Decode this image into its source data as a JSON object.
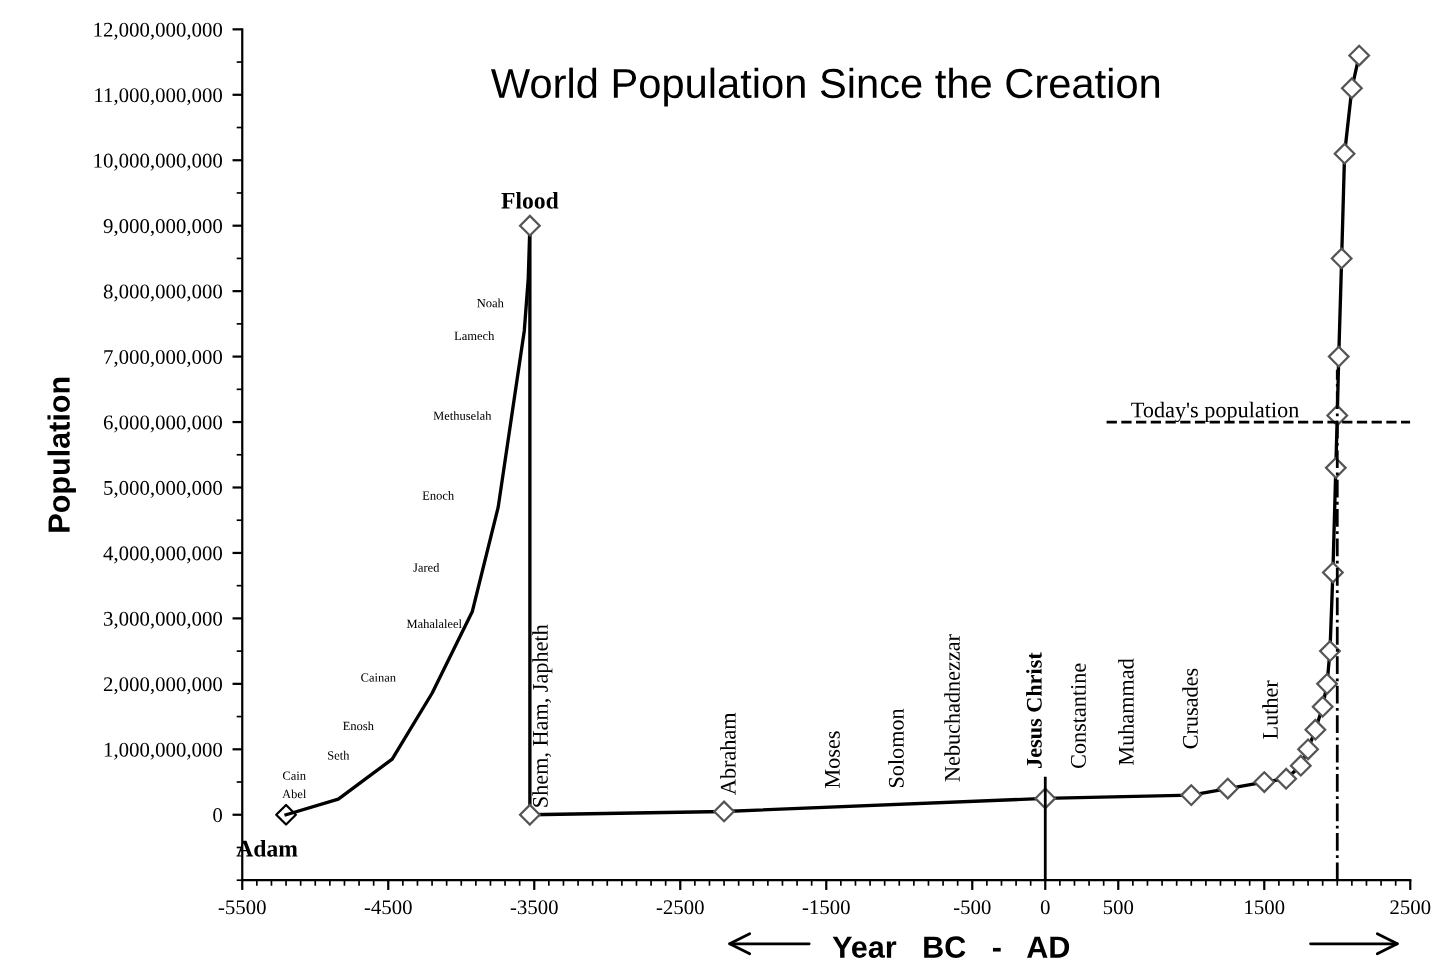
{
  "chart_data": {
    "type": "line",
    "title": "World Population Since the Creation",
    "xlabel": "Year   BC   -   AD",
    "ylabel": "Population",
    "series": [
      {
        "color": "#000000",
        "marker": "none",
        "x": [
          -5200,
          -4842,
          -4473,
          -4199,
          -3925,
          -3747,
          -3568,
          -3541,
          -3530
        ],
        "values": [
          0,
          240000000,
          850000000,
          1860000000,
          3100000000,
          4700000000,
          7400000000,
          8200000000,
          9000000000
        ]
      },
      {
        "type": "scatter",
        "color": "#000000",
        "marker": "diamond",
        "x": [
          -5200
        ],
        "values": [
          0
        ]
      },
      {
        "color": "#000000",
        "marker": "diamond",
        "x": [
          -3530,
          -3530,
          -2200,
          0,
          1000,
          1250,
          1500,
          1650,
          1750,
          1800,
          1850,
          1900,
          1930,
          1950,
          1970,
          1990,
          2000,
          2010,
          2030,
          2050,
          2100,
          2150
        ],
        "values": [
          9000000000,
          0,
          50000000,
          250000000,
          300000000,
          400000000,
          500000000,
          550000000,
          750000000,
          1000000000,
          1300000000,
          1650000000,
          2000000000,
          2500000000,
          3700000000,
          5300000000,
          6100000000,
          7000000000,
          8500000000,
          10100000000,
          11100000000,
          11600000000
        ]
      }
    ],
    "xlim": [
      -5500,
      2500
    ],
    "xticks": [
      -5500,
      -4500,
      -3500,
      -2500,
      -1500,
      -500,
      0,
      500,
      1500,
      2500
    ],
    "ylim": [
      -1000000000,
      12000000000
    ],
    "yticks": [
      0,
      {
        "value": 1000000000,
        "label": "1,000,000,000"
      },
      {
        "value": 2000000000,
        "label": "2,000,000,000"
      },
      {
        "value": 3000000000,
        "label": "3,000,000,000"
      },
      {
        "value": 4000000000,
        "label": "4,000,000,000"
      },
      {
        "value": 5000000000,
        "label": "5,000,000,000"
      },
      {
        "value": 6000000000,
        "label": "6,000,000,000"
      },
      {
        "value": 7000000000,
        "label": "7,000,000,000"
      },
      {
        "value": 8000000000,
        "label": "8,000,000,000"
      },
      {
        "value": 9000000000,
        "label": "9,000,000,000"
      },
      {
        "value": 10000000000,
        "label": "10,000,000,000"
      },
      {
        "value": 11000000000,
        "label": "11,000,000,000"
      },
      {
        "value": 12000000000,
        "label": "12,000,000,000"
      }
    ],
    "ref_lines": [
      {
        "axis": "y",
        "value": 6000000000,
        "label": "Today's population",
        "line_style": "dashed",
        "color": "#000000"
      },
      {
        "axis": "x",
        "value": 2000,
        "label": null,
        "line_style": "dashdot",
        "color": "#000000"
      },
      {
        "axis": "x",
        "value": 0,
        "label": null,
        "line_style": "solid",
        "color": "#000000"
      }
    ],
    "annotations": [
      "Adam",
      "Flood",
      "Noah",
      "Lamech",
      "Methuselah",
      "Enoch",
      "Jared",
      "Mahalaleel",
      "Cainan",
      "Enosh",
      "Seth",
      "Cain",
      "Abel",
      "Shem, Ham, Japheth",
      "Abraham",
      "Moses",
      "Solomon",
      "Nebuchadnezzar",
      "Jesus Christ",
      "Constantine",
      "Muhammad",
      "Crusades",
      "Luther"
    ]
  }
}
